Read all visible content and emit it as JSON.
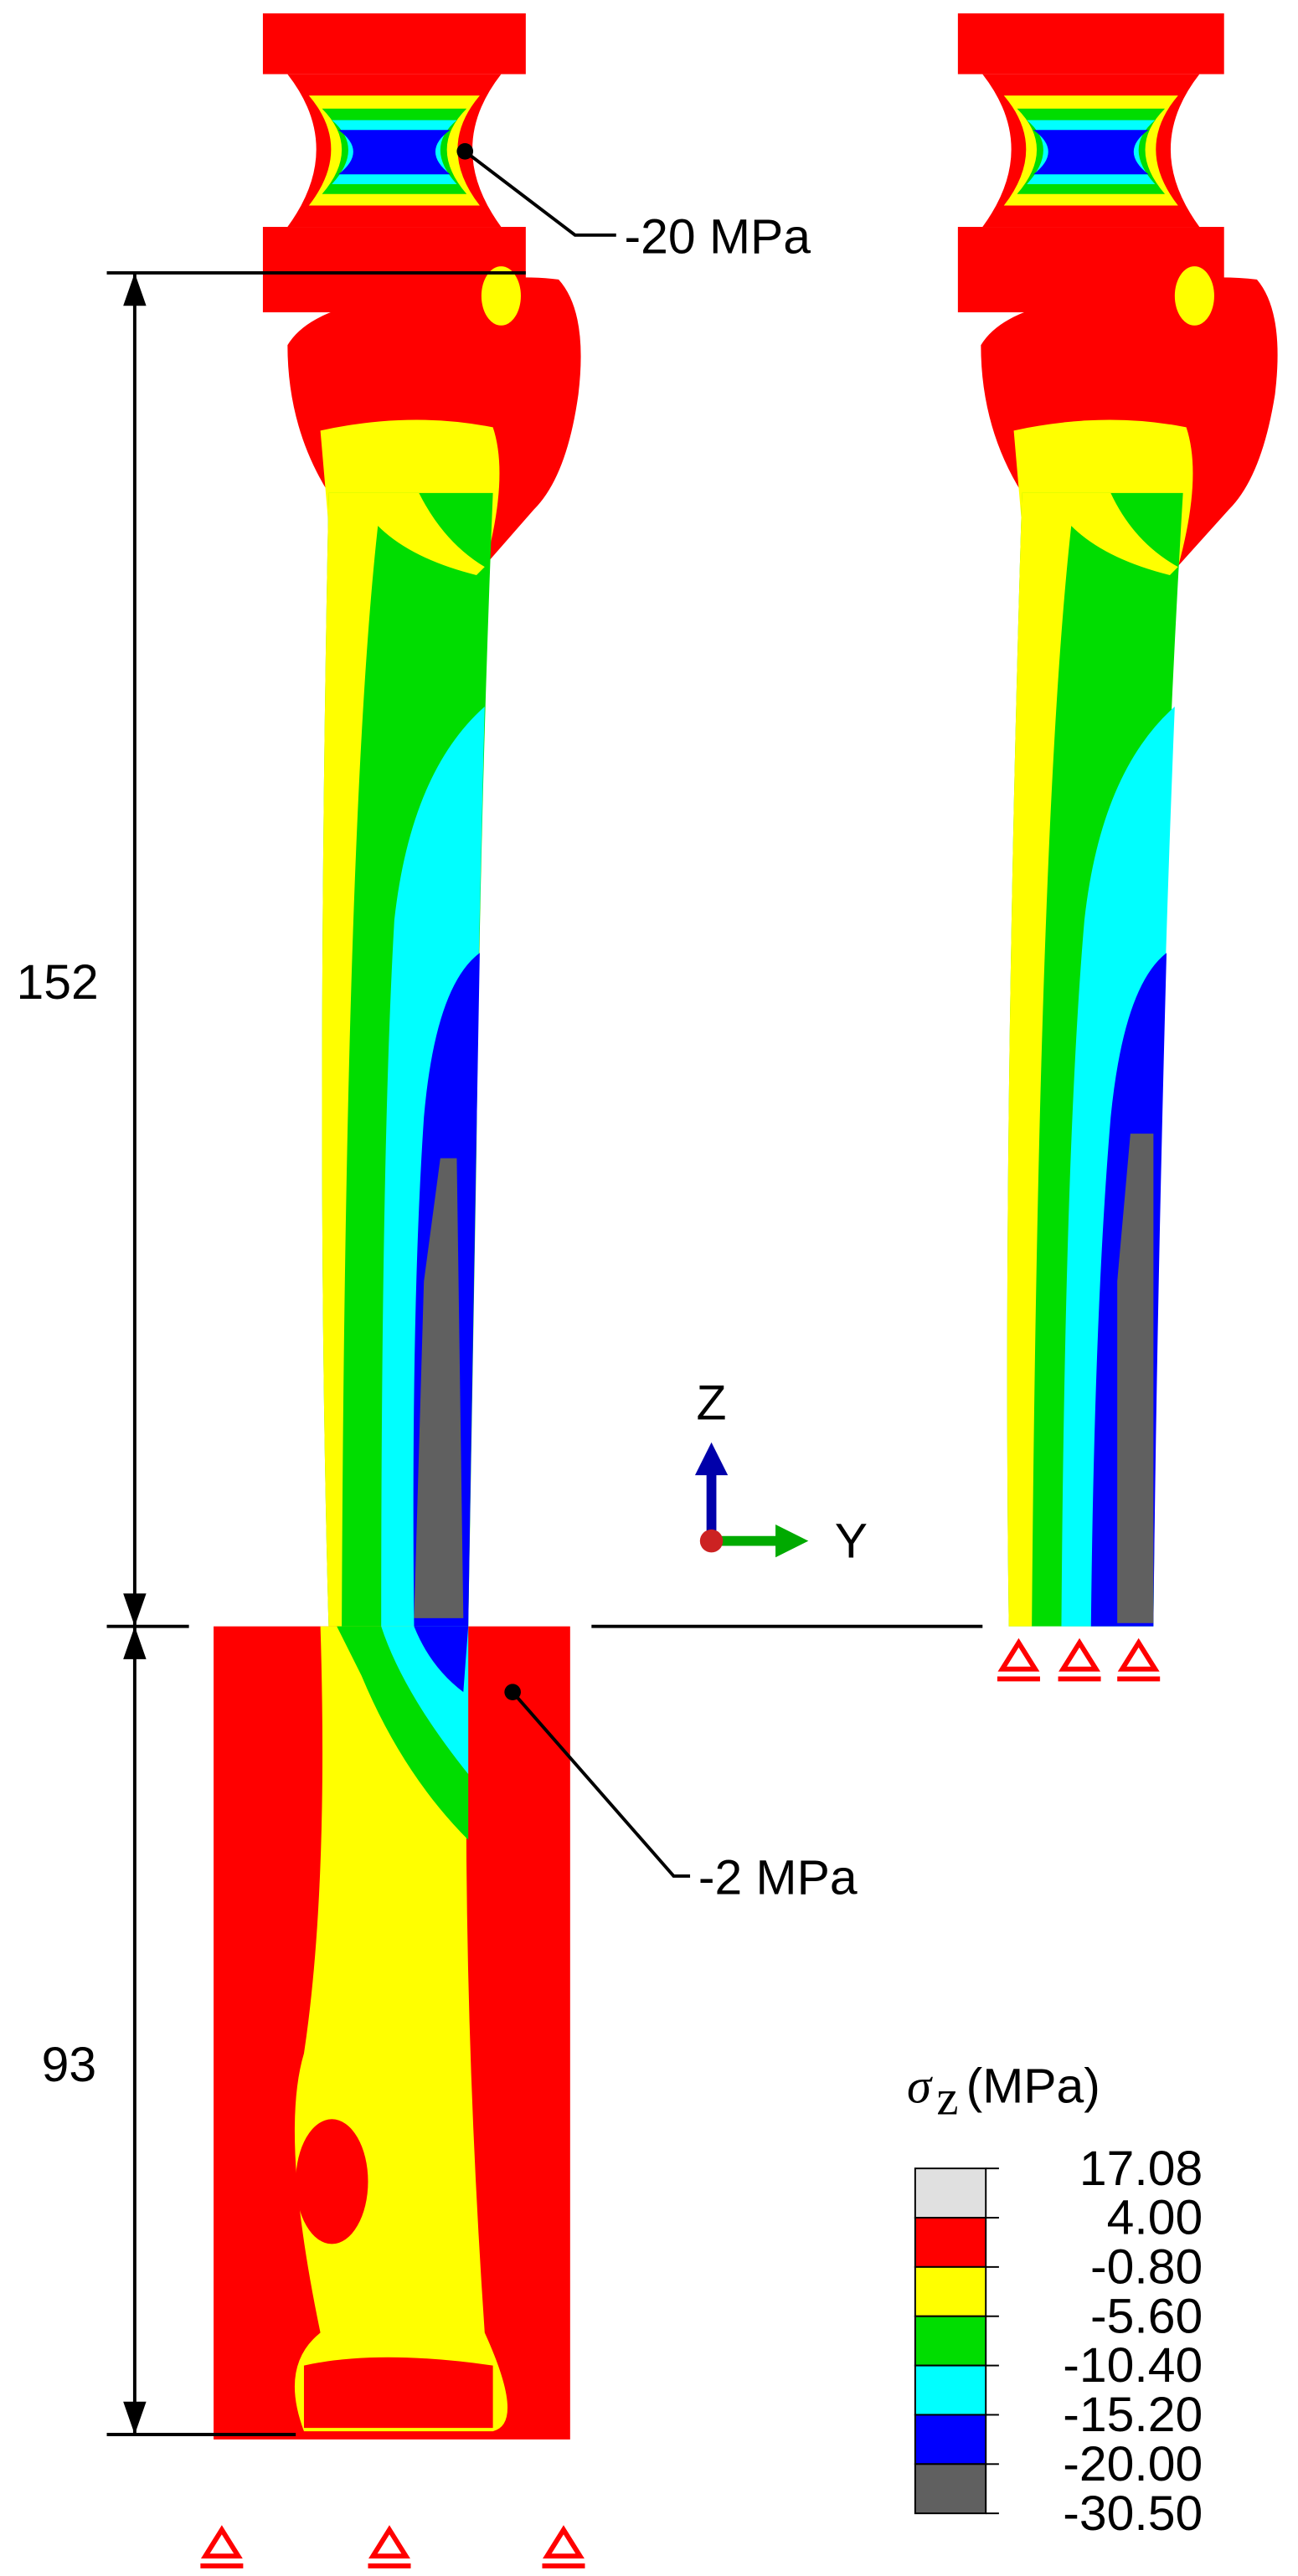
{
  "annotations": {
    "neck_stress": "-20 MPa",
    "block_stress": "-2 MPa"
  },
  "dimensions": {
    "shaft_length": 152,
    "embedded_length": 93
  },
  "axes": {
    "vertical": "Z",
    "horizontal": "Y"
  },
  "legend": {
    "symbol": "σ",
    "subscript": "z",
    "unit": "(MPa)",
    "levels": [
      "17.08",
      "4.00",
      "-0.80",
      "-5.60",
      "-10.40",
      "-15.20",
      "-20.00",
      "-30.50"
    ],
    "colors": [
      "#e0e0e0",
      "#ff0000",
      "#ffff00",
      "#00dd00",
      "#00ffff",
      "#0000ff",
      "#606060"
    ]
  }
}
